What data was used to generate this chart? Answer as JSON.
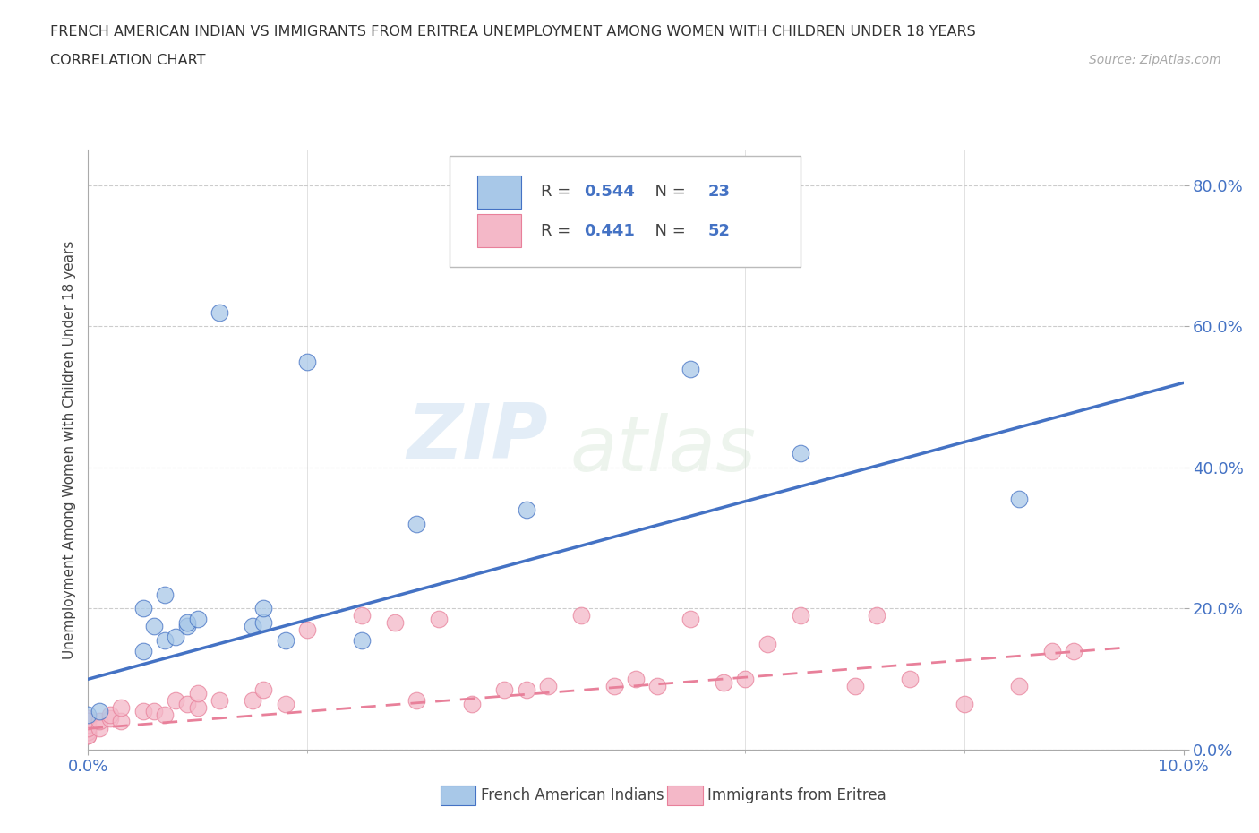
{
  "title_line1": "FRENCH AMERICAN INDIAN VS IMMIGRANTS FROM ERITREA UNEMPLOYMENT AMONG WOMEN WITH CHILDREN UNDER 18 YEARS",
  "title_line2": "CORRELATION CHART",
  "source_text": "Source: ZipAtlas.com",
  "ylabel": "Unemployment Among Women with Children Under 18 years",
  "xlim": [
    0.0,
    0.1
  ],
  "ylim": [
    0.0,
    0.85
  ],
  "ytick_vals": [
    0.0,
    0.2,
    0.4,
    0.6,
    0.8
  ],
  "xtick_vals": [
    0.0,
    0.1
  ],
  "blue_color": "#a8c8e8",
  "blue_line_color": "#4472c4",
  "pink_color": "#f4b8c8",
  "pink_line_color": "#e8809a",
  "r_blue": "0.544",
  "n_blue": "23",
  "r_pink": "0.441",
  "n_pink": "52",
  "watermark_zip": "ZIP",
  "watermark_atlas": "atlas",
  "legend_label_blue": "French American Indians",
  "legend_label_pink": "Immigrants from Eritrea",
  "blue_scatter_x": [
    0.0,
    0.001,
    0.005,
    0.005,
    0.006,
    0.007,
    0.007,
    0.008,
    0.009,
    0.009,
    0.01,
    0.012,
    0.015,
    0.016,
    0.016,
    0.018,
    0.02,
    0.025,
    0.03,
    0.04,
    0.055,
    0.065,
    0.085
  ],
  "blue_scatter_y": [
    0.05,
    0.055,
    0.14,
    0.2,
    0.175,
    0.155,
    0.22,
    0.16,
    0.175,
    0.18,
    0.185,
    0.62,
    0.175,
    0.18,
    0.2,
    0.155,
    0.55,
    0.155,
    0.32,
    0.34,
    0.54,
    0.42,
    0.355
  ],
  "pink_scatter_x": [
    0.0,
    0.0,
    0.0,
    0.0,
    0.0,
    0.0,
    0.0,
    0.0,
    0.0,
    0.0,
    0.001,
    0.001,
    0.002,
    0.002,
    0.003,
    0.003,
    0.005,
    0.006,
    0.007,
    0.008,
    0.009,
    0.01,
    0.01,
    0.012,
    0.015,
    0.016,
    0.018,
    0.02,
    0.025,
    0.028,
    0.03,
    0.032,
    0.035,
    0.038,
    0.04,
    0.042,
    0.045,
    0.048,
    0.05,
    0.052,
    0.055,
    0.058,
    0.06,
    0.062,
    0.065,
    0.07,
    0.072,
    0.075,
    0.08,
    0.085,
    0.088,
    0.09
  ],
  "pink_scatter_y": [
    0.02,
    0.025,
    0.03,
    0.025,
    0.04,
    0.02,
    0.035,
    0.03,
    0.045,
    0.04,
    0.03,
    0.04,
    0.045,
    0.05,
    0.04,
    0.06,
    0.055,
    0.055,
    0.05,
    0.07,
    0.065,
    0.06,
    0.08,
    0.07,
    0.07,
    0.085,
    0.065,
    0.17,
    0.19,
    0.18,
    0.07,
    0.185,
    0.065,
    0.085,
    0.085,
    0.09,
    0.19,
    0.09,
    0.1,
    0.09,
    0.185,
    0.095,
    0.1,
    0.15,
    0.19,
    0.09,
    0.19,
    0.1,
    0.065,
    0.09,
    0.14,
    0.14
  ],
  "blue_line_x0": 0.0,
  "blue_line_x1": 0.1,
  "blue_line_y0": 0.1,
  "blue_line_y1": 0.52,
  "pink_line_x0": 0.0,
  "pink_line_x1": 0.095,
  "pink_line_y0": 0.03,
  "pink_line_y1": 0.145
}
